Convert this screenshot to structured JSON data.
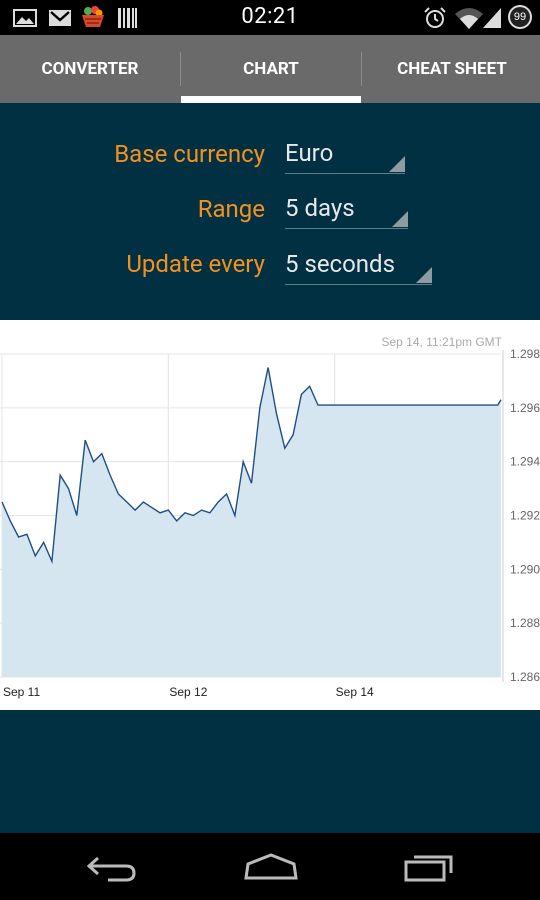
{
  "status_bar": {
    "time": "02:21",
    "battery_level": "99",
    "icons": [
      "picture-icon",
      "gmail-icon",
      "basket-icon",
      "barcode-icon",
      "alarm-icon",
      "wifi-icon",
      "signal-icon",
      "battery-icon"
    ]
  },
  "tabs": [
    {
      "label": "CONVERTER",
      "selected": false
    },
    {
      "label": "CHART",
      "selected": true
    },
    {
      "label": "CHEAT SHEET",
      "selected": false
    }
  ],
  "settings": {
    "base_currency": {
      "label": "Base currency",
      "value": "Euro"
    },
    "range": {
      "label": "Range",
      "value": "5 days"
    },
    "update_every": {
      "label": "Update every",
      "value": "5 seconds"
    }
  },
  "colors": {
    "accent": "#f4901e",
    "panel_bg": "#003042",
    "tab_bg": "#6a6a6a",
    "series_line": "#1f4e86",
    "series_fill": "#d5e6f1"
  },
  "chart_data": {
    "type": "area",
    "timestamp": "Sep 14, 11:21pm GMT",
    "x_tick_labels": [
      "Sep 11",
      "Sep 12",
      "Sep 14"
    ],
    "y_tick_labels": [
      "1.298",
      "1.296",
      "1.294",
      "1.292",
      "1.290",
      "1.288",
      "1.286"
    ],
    "ylim": [
      1.286,
      1.298
    ],
    "grid": true,
    "series": [
      {
        "x": [
          0,
          0.05,
          0.1,
          0.15,
          0.2,
          0.25,
          0.3,
          0.35,
          0.4,
          0.45,
          0.5,
          0.55,
          0.6,
          0.65,
          0.7,
          0.75,
          0.8,
          0.85,
          0.9,
          0.95,
          1.0,
          1.05,
          1.1,
          1.15,
          1.2,
          1.25,
          1.3,
          1.35,
          1.4,
          1.45,
          1.5,
          1.55,
          1.6,
          1.65,
          1.7,
          1.75,
          1.8,
          1.85,
          1.9,
          1.95,
          2.0,
          2.5,
          2.98,
          3.0
        ],
        "y": [
          1.2925,
          1.2918,
          1.2912,
          1.2913,
          1.2905,
          1.291,
          1.2903,
          1.2935,
          1.293,
          1.292,
          1.2948,
          1.294,
          1.2943,
          1.2935,
          1.2928,
          1.2925,
          1.2922,
          1.2925,
          1.2923,
          1.2921,
          1.2922,
          1.2918,
          1.2921,
          1.292,
          1.2922,
          1.2921,
          1.2925,
          1.2928,
          1.292,
          1.294,
          1.2932,
          1.296,
          1.2975,
          1.2958,
          1.2945,
          1.295,
          1.2965,
          1.2968,
          1.2961,
          1.2961,
          1.2961,
          1.2961,
          1.2961,
          1.2963
        ]
      }
    ]
  }
}
